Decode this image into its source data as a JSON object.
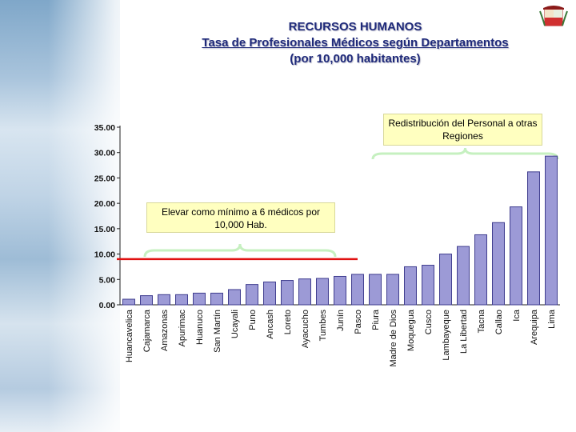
{
  "slide": {
    "title_line1": "RECURSOS HUMANOS",
    "title_line2": "Tasa de Profesionales Médicos según Departamentos",
    "title_line3": "(por 10,000 habitantes)"
  },
  "annotations": {
    "right_box": "Redistribución del Personal a otras Regiones",
    "left_box": "Elevar como mínimo a 6 médicos por 10,000 Hab."
  },
  "colors": {
    "title": "#1f2a7a",
    "bar_fill": "#9c9ad6",
    "bar_stroke": "#3f3d8f",
    "reference_line": "#e01010",
    "brace": "#c6f0c0",
    "callout_bg": "#ffffc0"
  },
  "chart_data": {
    "type": "bar",
    "categories": [
      "Huancavelica",
      "Cajamarca",
      "Amazonas",
      "Apurimac",
      "Huanuco",
      "San Martín",
      "Ucayali",
      "Puno",
      "Ancash",
      "Loreto",
      "Ayacucho",
      "Tumbes",
      "Junín",
      "Pasco",
      "Piura",
      "Madre de Dios",
      "Moquegua",
      "Cusco",
      "Lambayeque",
      "La Libertad",
      "Tacna",
      "Callao",
      "Ica",
      "Arequipa",
      "Lima"
    ],
    "values": [
      1.1,
      1.8,
      2.0,
      2.0,
      2.3,
      2.3,
      3.0,
      4.0,
      4.5,
      4.8,
      5.1,
      5.2,
      5.6,
      6.0,
      6.0,
      6.0,
      7.5,
      7.8,
      10.0,
      11.5,
      13.8,
      16.2,
      19.3,
      26.2,
      29.3
    ],
    "y_ticks": [
      "0.00",
      "5.00",
      "10.00",
      "15.00",
      "20.00",
      "25.00",
      "30.00",
      "35.00"
    ],
    "ylim": [
      0,
      35
    ],
    "reference_line": 9.0,
    "grid": false,
    "legend": "none"
  }
}
